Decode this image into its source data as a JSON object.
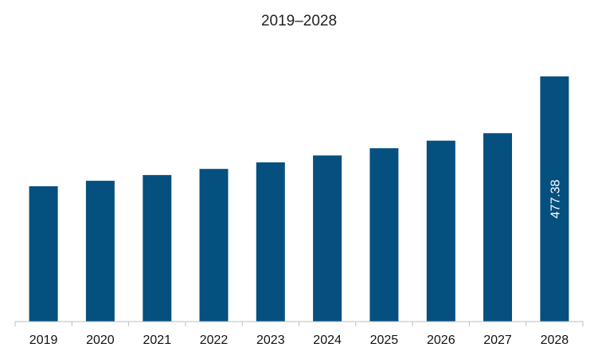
{
  "chart_data": {
    "type": "bar",
    "title": "2019–2028",
    "xlabel": "",
    "ylabel": "",
    "categories": [
      "2019",
      "2020",
      "2021",
      "2022",
      "2023",
      "2024",
      "2025",
      "2026",
      "2027",
      "2028"
    ],
    "values": [
      263.5,
      274.2,
      285.4,
      297.3,
      310.0,
      323.4,
      337.6,
      352.3,
      366.9,
      477.38
    ],
    "ylim": [
      0,
      560
    ],
    "grid": false,
    "legend": "none",
    "data_labels": [
      {
        "category": "2028",
        "text": "477.38"
      }
    ],
    "colors": {
      "bar": "#05507F",
      "axis": "#BFBFBF"
    }
  }
}
